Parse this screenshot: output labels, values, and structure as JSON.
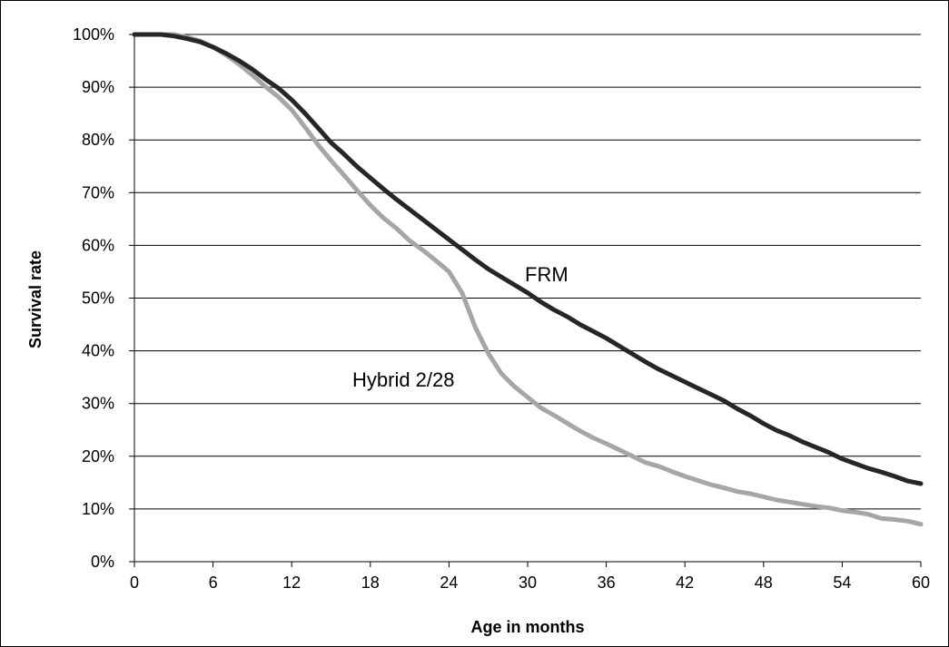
{
  "chart_data": {
    "type": "line",
    "title": "",
    "xlabel": "Age in months",
    "ylabel": "Survival rate",
    "xlim": [
      0,
      60
    ],
    "ylim": [
      0,
      100
    ],
    "x_ticks": [
      0,
      6,
      12,
      18,
      24,
      30,
      36,
      42,
      48,
      54,
      60
    ],
    "y_ticks": [
      0,
      10,
      20,
      30,
      40,
      50,
      60,
      70,
      80,
      90,
      100
    ],
    "y_tick_labels": [
      "0%",
      "10%",
      "20%",
      "30%",
      "40%",
      "50%",
      "60%",
      "70%",
      "80%",
      "90%",
      "100%"
    ],
    "grid": "horizontal",
    "legend": "none",
    "series": [
      {
        "name": "FRM",
        "color": "#262626",
        "x": [
          0,
          1,
          2,
          3,
          4,
          5,
          6,
          7,
          8,
          9,
          10,
          11,
          12,
          13,
          14,
          15,
          16,
          17,
          18,
          19,
          20,
          21,
          22,
          23,
          24,
          25,
          26,
          27,
          28,
          29,
          30,
          31,
          32,
          33,
          34,
          35,
          36,
          37,
          38,
          39,
          40,
          41,
          42,
          43,
          44,
          45,
          46,
          47,
          48,
          49,
          50,
          51,
          52,
          53,
          54,
          55,
          56,
          57,
          58,
          59,
          60
        ],
        "values": [
          100,
          100,
          100,
          99.7,
          99.2,
          98.6,
          97.6,
          96.4,
          95,
          93.4,
          91.5,
          89.8,
          87.6,
          85.1,
          82.3,
          79.5,
          77.3,
          74.9,
          72.8,
          70.7,
          68.7,
          66.8,
          64.9,
          63,
          61.1,
          59.2,
          57.3,
          55.5,
          54,
          52.5,
          51,
          49.3,
          47.8,
          46.5,
          45,
          43.7,
          42.4,
          40.9,
          39.4,
          37.9,
          36.5,
          35.3,
          34.1,
          32.9,
          31.7,
          30.5,
          29,
          27.7,
          26.2,
          24.9,
          23.9,
          22.7,
          21.7,
          20.7,
          19.5,
          18.6,
          17.7,
          17,
          16.2,
          15.3,
          14.8
        ]
      },
      {
        "name": "Hybrid 2/28",
        "color": "#a6a6a6",
        "x": [
          0,
          1,
          2,
          3,
          4,
          5,
          6,
          7,
          8,
          9,
          10,
          11,
          12,
          13,
          14,
          15,
          16,
          17,
          18,
          19,
          20,
          21,
          22,
          23,
          24,
          25,
          26,
          27,
          28,
          29,
          30,
          31,
          32,
          33,
          34,
          35,
          36,
          37,
          38,
          39,
          40,
          41,
          42,
          43,
          44,
          45,
          46,
          47,
          48,
          49,
          50,
          51,
          52,
          53,
          54,
          55,
          56,
          57,
          58,
          59,
          60
        ],
        "values": [
          100,
          100,
          100,
          100,
          99.5,
          98.8,
          97.6,
          96.1,
          94.3,
          92.3,
          90.1,
          88.1,
          85.7,
          82.5,
          79.1,
          76.1,
          73.3,
          70.4,
          67.6,
          65.2,
          63.2,
          60.9,
          59.1,
          57.1,
          55,
          51,
          44.5,
          39.5,
          35.7,
          33.2,
          31.2,
          29.2,
          27.8,
          26.3,
          24.8,
          23.5,
          22.4,
          21.2,
          20,
          18.8,
          18.1,
          17.1,
          16.2,
          15.4,
          14.6,
          14,
          13.3,
          12.9,
          12.3,
          11.7,
          11.3,
          10.9,
          10.5,
          10.2,
          9.7,
          9.4,
          9,
          8.2,
          8,
          7.7,
          7.1
        ]
      }
    ],
    "annotations": [
      {
        "text": "FRM",
        "series": "FRM"
      },
      {
        "text": "Hybrid 2/28",
        "series": "Hybrid 2/28"
      }
    ]
  }
}
